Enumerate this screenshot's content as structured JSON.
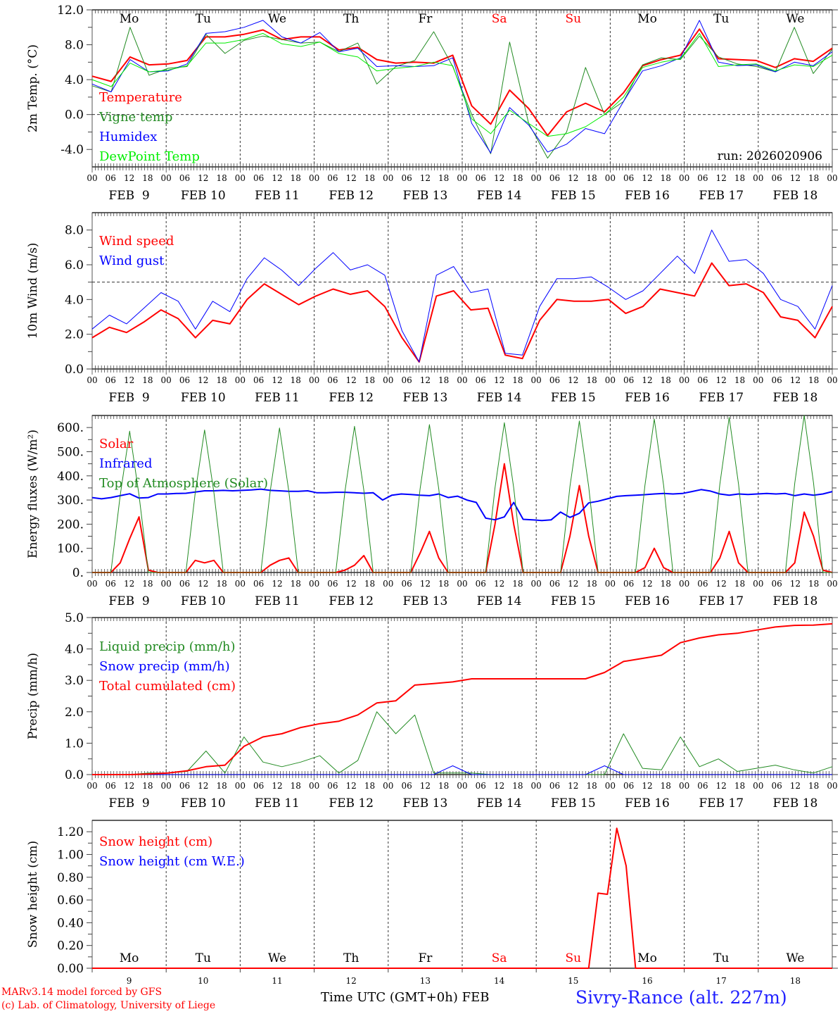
{
  "colors": {
    "red": "#ff0000",
    "darkgreen": "#228b22",
    "blue": "#0000ff",
    "lightgreen": "#00ee00",
    "black": "#000000",
    "grey": "#333333"
  },
  "x_axis": {
    "start": "FEB 9 00",
    "days": 10,
    "hour_ticks": [
      "00",
      "06",
      "12",
      "18"
    ],
    "end_tick": "00",
    "date_labels": [
      "FEB  9",
      "FEB 10",
      "FEB 11",
      "FEB 12",
      "FEB 13",
      "FEB 14",
      "FEB 15",
      "FEB 16",
      "FEB 17",
      "FEB 18"
    ],
    "weekdays": [
      "Mo",
      "Tu",
      "We",
      "Th",
      "Fr",
      "Sa",
      "Su",
      "Mo",
      "Tu",
      "We"
    ],
    "weekend_flags": [
      false,
      false,
      false,
      false,
      false,
      true,
      true,
      false,
      false,
      false
    ],
    "day_numbers": [
      "9",
      "10",
      "11",
      "12",
      "13",
      "14",
      "15",
      "16",
      "17",
      "18"
    ],
    "bottom_label": "Time UTC (GMT+0h) FEB"
  },
  "footer": {
    "credit_line1": "MARv3.14 model forced by GFS",
    "credit_line2": "(c) Lab. of Climatology, University of Liege",
    "station": "Sivry-Rance (alt. 227m)"
  },
  "chart_data": [
    {
      "type": "line",
      "ylabel": "2m Temp. (°C)",
      "ylim": [
        -6,
        12
      ],
      "yticks": [
        "12.0",
        "8.0",
        "4.0",
        "0.0",
        "-4.0"
      ],
      "ytick_values": [
        12,
        8,
        4,
        0,
        -4
      ],
      "ref_line": 0,
      "annotation": "run: 2026020906",
      "x_hours_step": 6,
      "series": [
        {
          "name": "Temperature",
          "color": "#ff0000",
          "width": 2,
          "values": [
            4.4,
            3.8,
            6.6,
            5.7,
            5.8,
            6.2,
            8.9,
            8.9,
            9.2,
            9.7,
            8.6,
            8.9,
            8.9,
            7.4,
            7.7,
            6.3,
            5.9,
            6.0,
            5.9,
            6.8,
            1.0,
            -1.1,
            2.8,
            0.7,
            -2.4,
            0.3,
            1.3,
            0.3,
            2.5,
            5.6,
            6.3,
            6.8,
            9.8,
            6.4,
            6.3,
            6.2,
            5.4,
            6.4,
            6.1,
            7.6
          ]
        },
        {
          "name": "Vigne temp",
          "color": "#228b22",
          "width": 1,
          "values": [
            3.3,
            2.6,
            10.0,
            4.5,
            5.3,
            5.5,
            9.2,
            7.0,
            8.5,
            9.0,
            8.6,
            8.2,
            8.3,
            7.2,
            8.2,
            3.5,
            5.5,
            6.2,
            9.5,
            5.5,
            0.0,
            -4.5,
            8.3,
            -1.0,
            -5.0,
            -2.0,
            5.4,
            0.0,
            1.5,
            5.7,
            6.5,
            6.3,
            9.0,
            6.6,
            5.8,
            5.5,
            4.9,
            10.0,
            4.7,
            7.5
          ]
        },
        {
          "name": "Humidex",
          "color": "#0000ff",
          "width": 1,
          "values": [
            3.5,
            2.6,
            6.3,
            4.9,
            5.0,
            5.8,
            9.3,
            9.5,
            10.0,
            10.8,
            8.9,
            8.2,
            9.4,
            7.2,
            7.6,
            5.5,
            5.6,
            5.5,
            5.6,
            6.5,
            -1.0,
            -4.4,
            0.8,
            -1.2,
            -4.3,
            -3.4,
            -1.6,
            -2.2,
            1.5,
            5.0,
            5.6,
            6.5,
            10.8,
            6.0,
            5.6,
            5.7,
            4.9,
            6.0,
            5.6,
            7.2
          ]
        },
        {
          "name": "DewPoint Temp",
          "color": "#00ee00",
          "width": 1,
          "values": [
            4.0,
            3.2,
            5.9,
            4.9,
            5.1,
            5.6,
            8.2,
            8.2,
            8.6,
            9.3,
            8.1,
            7.8,
            8.3,
            7.0,
            6.6,
            5.0,
            5.3,
            5.5,
            6.0,
            5.6,
            -0.5,
            -2.2,
            0.5,
            -1.0,
            -2.5,
            -2.2,
            -1.4,
            0.0,
            2.0,
            5.4,
            6.0,
            6.4,
            9.3,
            5.5,
            5.7,
            5.8,
            5.0,
            5.7,
            5.5,
            6.8
          ]
        }
      ]
    },
    {
      "type": "line",
      "ylabel": "10m Wind (m/s)",
      "ylim": [
        0,
        9
      ],
      "yticks": [
        "8.0",
        "6.0",
        "4.0",
        "2.0",
        "0.0"
      ],
      "ytick_values": [
        8,
        6,
        4,
        2,
        0
      ],
      "ref_line": 5,
      "x_hours_step": 6,
      "series": [
        {
          "name": "Wind speed",
          "color": "#ff0000",
          "width": 2,
          "values": [
            1.8,
            2.4,
            2.1,
            2.7,
            3.4,
            2.9,
            1.8,
            2.8,
            2.6,
            4.0,
            4.9,
            4.3,
            3.7,
            4.2,
            4.6,
            4.3,
            4.5,
            3.6,
            1.8,
            0.4,
            4.2,
            4.5,
            3.4,
            3.5,
            0.8,
            0.6,
            2.8,
            4.0,
            3.9,
            3.9,
            4.0,
            3.2,
            3.6,
            4.6,
            4.4,
            4.2,
            6.1,
            4.8,
            4.9,
            4.4,
            3.0,
            2.8,
            1.8,
            3.6
          ]
        },
        {
          "name": "Wind gust",
          "color": "#0000ff",
          "width": 1,
          "values": [
            2.3,
            3.1,
            2.6,
            3.5,
            4.4,
            3.9,
            2.3,
            3.9,
            3.3,
            5.2,
            6.4,
            5.7,
            4.8,
            5.8,
            6.7,
            5.7,
            6.0,
            5.4,
            2.2,
            0.4,
            5.4,
            5.9,
            4.4,
            4.6,
            0.9,
            0.8,
            3.6,
            5.2,
            5.2,
            5.3,
            4.7,
            4.0,
            4.5,
            5.5,
            6.5,
            5.5,
            8.0,
            6.2,
            6.3,
            5.5,
            4.0,
            3.6,
            2.3,
            4.8
          ]
        }
      ]
    },
    {
      "type": "line",
      "ylabel": "Energy fluxes (W/m²)",
      "ylim": [
        0,
        650
      ],
      "yticks": [
        "600.",
        "500.",
        "400.",
        "300.",
        "200.",
        "100.",
        "0."
      ],
      "ytick_values": [
        600,
        500,
        400,
        300,
        200,
        100,
        0
      ],
      "x_hours_step": 3,
      "series": [
        {
          "name": "Solar",
          "color": "#ff0000",
          "width": 2,
          "values": [
            0,
            0,
            0,
            40,
            140,
            230,
            10,
            0,
            0,
            0,
            0,
            50,
            40,
            50,
            0,
            0,
            0,
            0,
            0,
            30,
            50,
            60,
            0,
            0,
            0,
            0,
            0,
            10,
            30,
            70,
            0,
            0,
            0,
            0,
            0,
            80,
            170,
            60,
            0,
            0,
            0,
            0,
            0,
            200,
            450,
            200,
            0,
            0,
            0,
            0,
            0,
            150,
            360,
            150,
            0,
            0,
            0,
            0,
            0,
            20,
            100,
            20,
            0,
            0,
            0,
            0,
            0,
            60,
            170,
            40,
            0,
            0,
            0,
            0,
            0,
            40,
            250,
            150,
            10,
            0
          ]
        },
        {
          "name": "Infrared",
          "color": "#0000ff",
          "width": 2,
          "values": [
            310,
            305,
            310,
            318,
            326,
            308,
            310,
            325,
            325,
            327,
            328,
            333,
            338,
            338,
            340,
            338,
            340,
            342,
            345,
            340,
            338,
            336,
            336,
            338,
            330,
            330,
            332,
            332,
            330,
            328,
            330,
            300,
            320,
            325,
            323,
            320,
            318,
            325,
            310,
            316,
            300,
            290,
            225,
            218,
            230,
            290,
            220,
            218,
            215,
            218,
            250,
            228,
            245,
            288,
            295,
            305,
            315,
            318,
            320,
            322,
            325,
            327,
            325,
            327,
            335,
            343,
            337,
            325,
            320,
            325,
            323,
            325,
            327,
            325,
            327,
            318,
            325,
            320,
            325,
            335
          ]
        },
        {
          "name": "Top of Atmosphere (Solar)",
          "color": "#228b22",
          "width": 1,
          "values": [
            0,
            0,
            0,
            320,
            585,
            320,
            0,
            0,
            0,
            0,
            0,
            330,
            590,
            330,
            0,
            0,
            0,
            0,
            0,
            335,
            598,
            335,
            0,
            0,
            0,
            0,
            0,
            340,
            605,
            340,
            0,
            0,
            0,
            0,
            0,
            345,
            612,
            345,
            0,
            0,
            0,
            0,
            0,
            350,
            620,
            350,
            0,
            0,
            0,
            0,
            0,
            355,
            627,
            355,
            0,
            0,
            0,
            0,
            0,
            360,
            635,
            360,
            0,
            0,
            0,
            0,
            0,
            365,
            642,
            365,
            0,
            0,
            0,
            0,
            0,
            370,
            650,
            370,
            0,
            0
          ]
        }
      ]
    },
    {
      "type": "line",
      "ylabel": "Precip (mm/h)",
      "ylim": [
        0,
        5
      ],
      "yticks": [
        "5.0",
        "4.0",
        "3.0",
        "2.0",
        "1.0",
        "0.0"
      ],
      "ytick_values": [
        5,
        4,
        3,
        2,
        1,
        0
      ],
      "x_hours_step": 6,
      "series": [
        {
          "name": "Liquid precip (mm/h)",
          "color": "#228b22",
          "width": 1,
          "values": [
            0,
            0,
            0,
            0.05,
            0.05,
            0.1,
            0.75,
            0.05,
            1.2,
            0.4,
            0.25,
            0.4,
            0.6,
            0.05,
            0.45,
            2.0,
            1.3,
            1.9,
            0.05,
            0.05,
            0.05,
            0,
            0,
            0,
            0,
            0,
            0,
            0,
            1.3,
            0.2,
            0.15,
            1.2,
            0.25,
            0.5,
            0.1,
            0.2,
            0.3,
            0.15,
            0.05,
            0.25
          ]
        },
        {
          "name": "Snow precip (mm/h)",
          "color": "#0000ff",
          "width": 1,
          "values": [
            0,
            0,
            0,
            0,
            0,
            0,
            0,
            0,
            0,
            0,
            0,
            0,
            0,
            0,
            0,
            0,
            0,
            0,
            0,
            0.28,
            0,
            0,
            0,
            0,
            0,
            0,
            0,
            0.28,
            0,
            0,
            0,
            0,
            0,
            0,
            0,
            0,
            0,
            0,
            0,
            0
          ]
        },
        {
          "name": "Total cumulated (cm)",
          "color": "#ff0000",
          "width": 2,
          "values": [
            0,
            0,
            0,
            0.02,
            0.05,
            0.12,
            0.25,
            0.3,
            0.9,
            1.2,
            1.3,
            1.5,
            1.62,
            1.7,
            1.9,
            2.28,
            2.35,
            2.85,
            2.9,
            2.95,
            3.05,
            3.05,
            3.05,
            3.05,
            3.05,
            3.05,
            3.05,
            3.25,
            3.6,
            3.7,
            3.8,
            4.2,
            4.35,
            4.45,
            4.5,
            4.6,
            4.7,
            4.75,
            4.76,
            4.8
          ]
        }
      ]
    },
    {
      "type": "line",
      "ylabel": "Snow height (cm)",
      "ylim": [
        0,
        1.3
      ],
      "yticks": [
        "1.20",
        "1.00",
        "0.80",
        "0.60",
        "0.40",
        "0.20",
        "0.00"
      ],
      "ytick_values": [
        1.2,
        1.0,
        0.8,
        0.6,
        0.4,
        0.2,
        0
      ],
      "x_hours_step": 3,
      "series": [
        {
          "name": "Snow height (cm)",
          "color": "#ff0000",
          "width": 2,
          "values": [
            0,
            0,
            0,
            0,
            0,
            0,
            0,
            0,
            0,
            0,
            0,
            0,
            0,
            0,
            0,
            0,
            0,
            0,
            0,
            0,
            0,
            0,
            0,
            0,
            0,
            0,
            0,
            0,
            0,
            0,
            0,
            0,
            0,
            0,
            0,
            0,
            0,
            0,
            0,
            0,
            0,
            0,
            0,
            0,
            0,
            0,
            0,
            0,
            0,
            0,
            0,
            0,
            0,
            0,
            0.66,
            0.65,
            1.23,
            0.9,
            0,
            0,
            0,
            0,
            0,
            0,
            0,
            0,
            0,
            0,
            0,
            0,
            0,
            0,
            0,
            0,
            0,
            0,
            0,
            0,
            0,
            0
          ]
        },
        {
          "name": "Snow height (cm W.E.)",
          "color": "#0000ff",
          "width": 1,
          "values": []
        }
      ]
    }
  ]
}
